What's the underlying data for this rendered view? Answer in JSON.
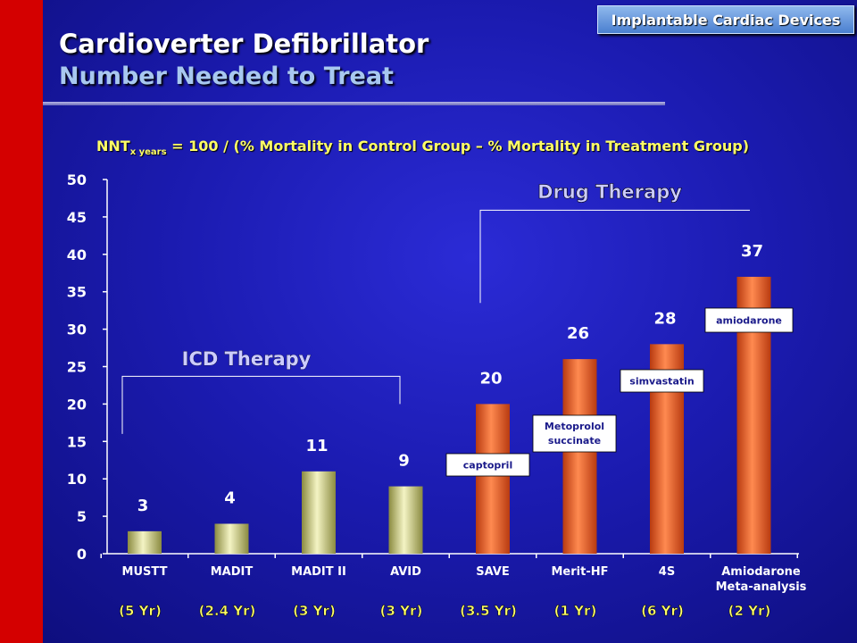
{
  "header": {
    "title": "Cardioverter Defibrillator",
    "subtitle": "Number Needed to Treat",
    "tag": "Implantable Cardiac Devices"
  },
  "formula": {
    "prefix": "NNT",
    "subscript": "x years",
    "rest": " = 100 / (% Mortality in Control Group – % Mortality in Treatment Group)"
  },
  "colors": {
    "icd_bar": "#e8e8a8",
    "drug_bar": "#f06a30",
    "formula_text": "#ffff66",
    "label_text": "#ccccff"
  },
  "chart_data": {
    "type": "bar",
    "categories": [
      "MUSTT",
      "MADIT",
      "MADIT II",
      "AVID",
      "SAVE",
      "Merit-HF",
      "4S",
      "Amiodarone\nMeta-analysis"
    ],
    "durations": [
      "(5 Yr)",
      "(2.4 Yr)",
      "(3 Yr)",
      "(3 Yr)",
      "(3.5 Yr)",
      "(1 Yr)",
      "(6 Yr)",
      "(2 Yr)"
    ],
    "values": [
      3,
      4,
      11,
      9,
      20,
      26,
      28,
      37
    ],
    "groups": [
      "ICD",
      "ICD",
      "ICD",
      "ICD",
      "Drug",
      "Drug",
      "Drug",
      "Drug"
    ],
    "drug_labels": [
      "",
      "",
      "",
      "",
      "captopril",
      "Metoprolol succinate",
      "simvastatin",
      "amiodarone"
    ],
    "ylim": [
      0,
      50
    ],
    "yticks": [
      0,
      5,
      10,
      15,
      20,
      25,
      30,
      35,
      40,
      45,
      50
    ],
    "annotations": {
      "icd_group": "ICD Therapy",
      "drug_group": "Drug Therapy"
    }
  }
}
